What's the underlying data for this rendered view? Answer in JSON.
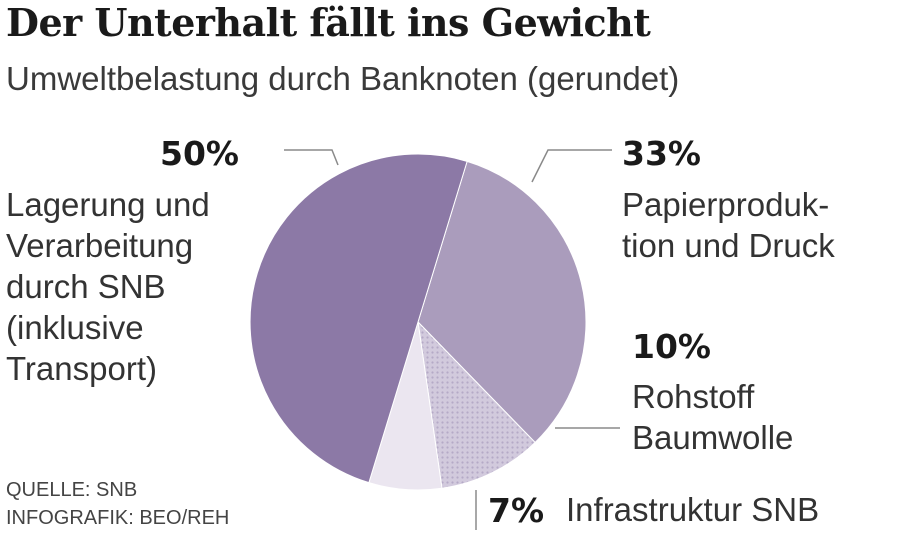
{
  "header": {
    "title": "Der Unterhalt fällt ins Gewicht",
    "subtitle": "Umweltbelastung durch Banknoten (gerundet)"
  },
  "footer": {
    "source_line": "QUELLE: SNB",
    "credit_line": "INFOGRAFIK: BEO/REH"
  },
  "colors": {
    "dark_purple": "#8c79a6",
    "mid_purple": "#aa9cbc",
    "light_pattern": "#cdc4da",
    "pale": "#ebe6f0",
    "leader": "#8a8a8a"
  },
  "chart_data": {
    "type": "pie",
    "title": "Der Unterhalt fällt ins Gewicht",
    "subtitle": "Umweltbelastung durch Banknoten (gerundet)",
    "unit": "%",
    "slices": [
      {
        "value": 33,
        "percent_label": "33%",
        "label_lines": [
          "Papierproduk-",
          "tion und Druck"
        ]
      },
      {
        "value": 10,
        "percent_label": "10%",
        "label_lines": [
          "Rohstoff",
          "Baumwolle"
        ]
      },
      {
        "value": 7,
        "percent_label": "7%",
        "label_lines": [
          "Infrastruktur SNB"
        ]
      },
      {
        "value": 50,
        "percent_label": "50%",
        "label_lines": [
          "Lagerung und",
          "Verarbeitung",
          "durch SNB",
          "(inklusive",
          "Transport)"
        ]
      }
    ]
  }
}
